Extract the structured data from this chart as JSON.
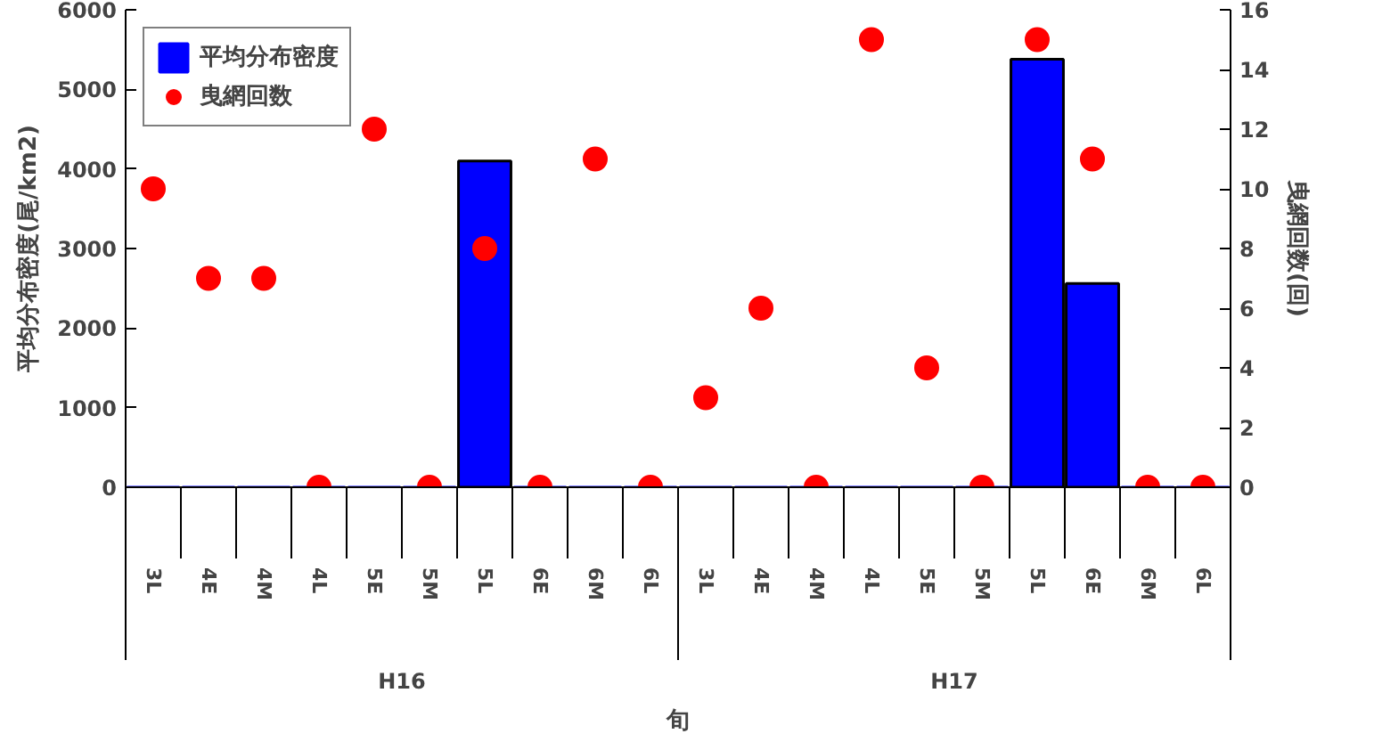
{
  "chart_data": {
    "type": "bar",
    "xlabel": "旬",
    "ylabel": "平均分布密度(尾/km2)",
    "y2label": "曳網回数(回)",
    "categories": [
      "3L",
      "4E",
      "4M",
      "4L",
      "5E",
      "5M",
      "5L",
      "6E",
      "6M",
      "6L",
      "3L",
      "4E",
      "4M",
      "4L",
      "5E",
      "5M",
      "5L",
      "6E",
      "6M",
      "6L"
    ],
    "series": [
      {
        "name": "平均分布密度",
        "color": "#0000ff",
        "values": [
          0,
          0,
          0,
          0,
          0,
          0,
          4100,
          0,
          0,
          0,
          0,
          0,
          0,
          0,
          0,
          0,
          5380,
          2560,
          0,
          0
        ]
      },
      {
        "name": "曳網回数",
        "type": "scatter",
        "axis": "y2",
        "color": "#ff0000",
        "values": [
          10,
          7,
          7,
          0,
          12,
          0,
          8,
          0,
          11,
          0,
          3,
          6,
          0,
          15,
          4,
          0,
          15,
          11,
          0,
          0
        ]
      }
    ],
    "annotations": [
      "H16",
      "H17"
    ],
    "ylim": [
      0,
      6000
    ],
    "yticks": [
      0,
      1000,
      2000,
      3000,
      4000,
      5000,
      6000
    ],
    "y2lim": [
      0,
      16
    ],
    "y2ticks": [
      0,
      2,
      4,
      6,
      8,
      10,
      12,
      14,
      16
    ],
    "legend": "top left",
    "grid": false,
    "marker": "circle"
  }
}
